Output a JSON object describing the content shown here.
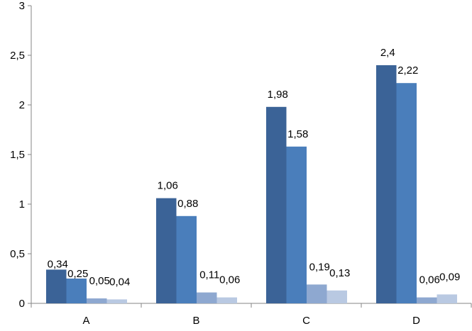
{
  "chart_data": {
    "type": "bar",
    "categories": [
      "A",
      "B",
      "C",
      "D"
    ],
    "series": [
      {
        "values": [
          0.34,
          1.06,
          1.98,
          2.4
        ],
        "labels": [
          "0,34",
          "1,06",
          "1,98",
          "2,4"
        ],
        "color": "#3b6397"
      },
      {
        "values": [
          0.25,
          0.88,
          1.58,
          2.22
        ],
        "labels": [
          "0,25",
          "0,88",
          "1,58",
          "2,22"
        ],
        "color": "#4a7ebb"
      },
      {
        "values": [
          0.05,
          0.11,
          0.19,
          0.06
        ],
        "labels": [
          "0,05",
          "0,11",
          "0,19",
          "0,06"
        ],
        "color": "#8ea8d0"
      },
      {
        "values": [
          0.04,
          0.06,
          0.13,
          0.09
        ],
        "labels": [
          "0,04",
          "0,06",
          "0,13",
          "0,09"
        ],
        "color": "#b9c9e2"
      }
    ],
    "y_ticks": [
      0,
      0.5,
      1,
      1.5,
      2,
      2.5,
      3
    ],
    "y_tick_labels": [
      "0",
      "0,5",
      "1",
      "1,5",
      "2",
      "2,5",
      "3"
    ],
    "ylim": [
      0,
      3
    ],
    "title": "",
    "xlabel": "",
    "ylabel": "",
    "grid": false,
    "legend": "none",
    "axis_color": "#868686"
  }
}
